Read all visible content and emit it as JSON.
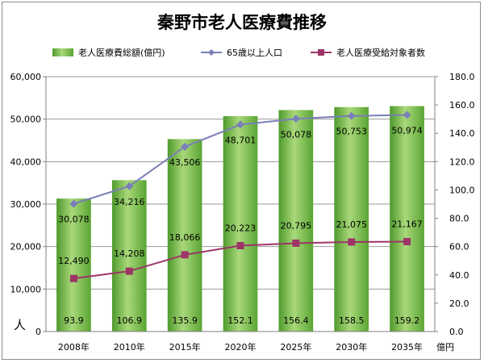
{
  "chart_data": {
    "type": "bar",
    "title": "秦野市老人医療費推移",
    "categories": [
      "2008年",
      "2010年",
      "2015年",
      "2020年",
      "2025年",
      "2030年",
      "2035年"
    ],
    "series": [
      {
        "name": "老人医療費総額(億円)",
        "kind": "bar",
        "axis": "right",
        "color": "#7cc04a",
        "values": [
          93.9,
          106.9,
          135.9,
          152.1,
          156.4,
          158.5,
          159.2
        ],
        "labels": [
          "93.9",
          "106.9",
          "135.9",
          "152.1",
          "156.4",
          "158.5",
          "159.2"
        ]
      },
      {
        "name": "65歳以上人口",
        "kind": "line",
        "axis": "left",
        "color": "#7a7fb8",
        "marker": "diamond",
        "values": [
          30078,
          34216,
          43506,
          48701,
          50078,
          50753,
          50974
        ],
        "labels": [
          "30,078",
          "34,216",
          "43,506",
          "48,701",
          "50,078",
          "50,753",
          "50,974"
        ]
      },
      {
        "name": "老人医療受給対象者数",
        "kind": "line",
        "axis": "left",
        "color": "#9c3566",
        "marker": "square",
        "values": [
          12490,
          14208,
          18066,
          20223,
          20795,
          21075,
          21167
        ],
        "labels": [
          "12,490",
          "14,208",
          "18,066",
          "20,223",
          "20,795",
          "21,075",
          "21,167"
        ]
      }
    ],
    "left_axis": {
      "min": 0,
      "max": 60000,
      "step": 10000,
      "tick_labels": [
        "0",
        "10,000",
        "20,000",
        "30,000",
        "40,000",
        "50,000",
        "60,000"
      ],
      "unit": "人"
    },
    "right_axis": {
      "min": 0,
      "max": 180,
      "step": 20,
      "tick_labels": [
        "0.0",
        "20.0",
        "40.0",
        "60.0",
        "80.0",
        "100.0",
        "120.0",
        "140.0",
        "160.0",
        "180.0"
      ],
      "unit": "億円"
    },
    "grid": true,
    "legend_position": "top"
  }
}
